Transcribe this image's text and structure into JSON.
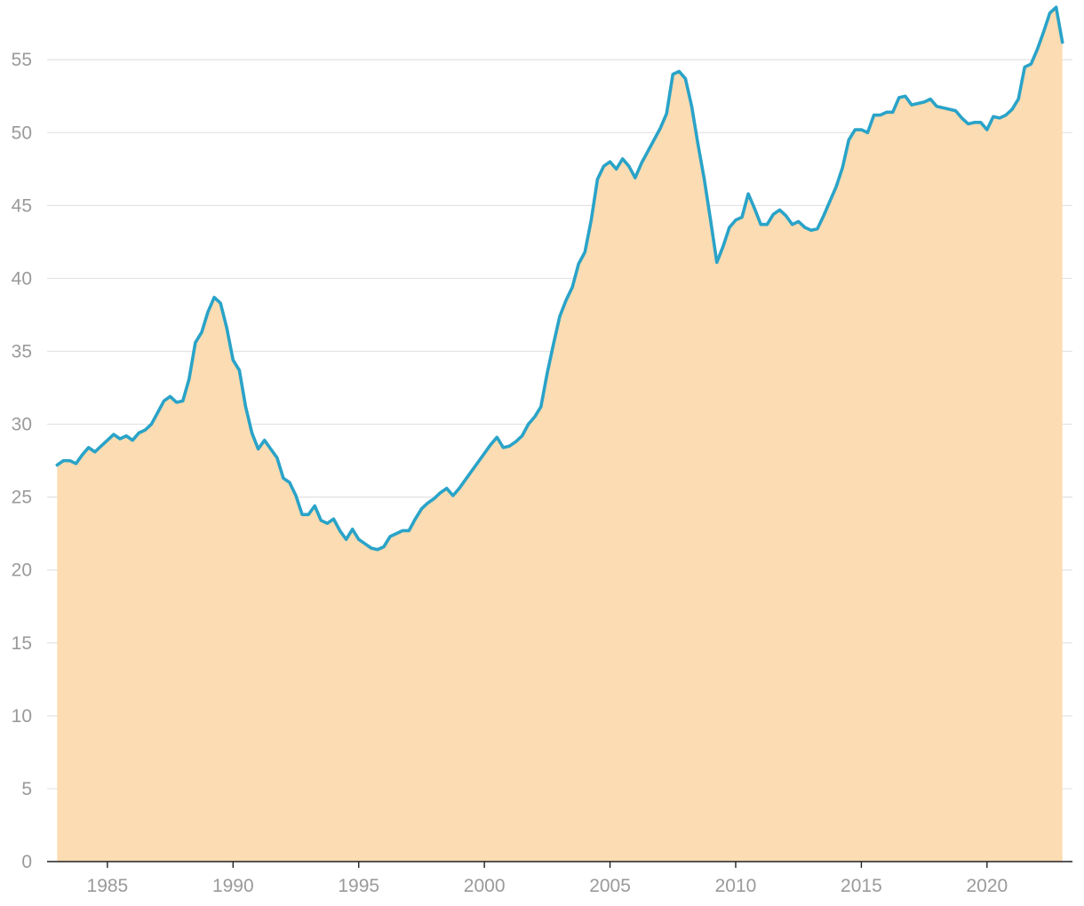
{
  "chart_data": {
    "type": "area",
    "title": "",
    "xlabel": "",
    "ylabel": "",
    "xlim": [
      1982.6,
      2023.4
    ],
    "ylim": [
      0,
      58
    ],
    "y_ticks": [
      0,
      5,
      10,
      15,
      20,
      25,
      30,
      35,
      40,
      45,
      50,
      55
    ],
    "x_ticks": [
      1985,
      1990,
      1995,
      2000,
      2005,
      2010,
      2015,
      2020
    ],
    "grid": true,
    "legend": "none",
    "colors": {
      "line": "#2aa3c8",
      "fill": "#fcdcb2",
      "grid": "#e3e3e3",
      "axis": "#222222",
      "tick_label": "#9a9a9a"
    },
    "series": [
      {
        "x": [
          1983.0,
          1983.25,
          1983.5,
          1983.75,
          1984.0,
          1984.25,
          1984.5,
          1984.75,
          1985.0,
          1985.25,
          1985.5,
          1985.75,
          1986.0,
          1986.25,
          1986.5,
          1986.75,
          1987.0,
          1987.25,
          1987.5,
          1987.75,
          1988.0,
          1988.25,
          1988.5,
          1988.75,
          1989.0,
          1989.25,
          1989.5,
          1989.75,
          1990.0,
          1990.25,
          1990.5,
          1990.75,
          1991.0,
          1991.25,
          1991.5,
          1991.75,
          1992.0,
          1992.25,
          1992.5,
          1992.75,
          1993.0,
          1993.25,
          1993.5,
          1993.75,
          1994.0,
          1994.25,
          1994.5,
          1994.75,
          1995.0,
          1995.25,
          1995.5,
          1995.75,
          1996.0,
          1996.25,
          1996.5,
          1996.75,
          1997.0,
          1997.25,
          1997.5,
          1997.75,
          1998.0,
          1998.25,
          1998.5,
          1998.75,
          1999.0,
          1999.25,
          1999.5,
          1999.75,
          2000.0,
          2000.25,
          2000.5,
          2000.75,
          2001.0,
          2001.25,
          2001.5,
          2001.75,
          2002.0,
          2002.25,
          2002.5,
          2002.75,
          2003.0,
          2003.25,
          2003.5,
          2003.75,
          2004.0,
          2004.25,
          2004.5,
          2004.75,
          2005.0,
          2005.25,
          2005.5,
          2005.75,
          2006.0,
          2006.25,
          2006.5,
          2006.75,
          2007.0,
          2007.25,
          2007.5,
          2007.75,
          2008.0,
          2008.25,
          2008.5,
          2008.75,
          2009.0,
          2009.25,
          2009.5,
          2009.75,
          2010.0,
          2010.25,
          2010.5,
          2010.75,
          2011.0,
          2011.25,
          2011.5,
          2011.75,
          2012.0,
          2012.25,
          2012.5,
          2012.75,
          2013.0,
          2013.25,
          2013.5,
          2013.75,
          2014.0,
          2014.25,
          2014.5,
          2014.75,
          2015.0,
          2015.25,
          2015.5,
          2015.75,
          2016.0,
          2016.25,
          2016.5,
          2016.75,
          2017.0,
          2017.25,
          2017.5,
          2017.75,
          2018.0,
          2018.25,
          2018.5,
          2018.75,
          2019.0,
          2019.25,
          2019.5,
          2019.75,
          2020.0,
          2020.25,
          2020.5,
          2020.75,
          2021.0,
          2021.25,
          2021.5,
          2021.75,
          2022.0,
          2022.25,
          2022.5,
          2022.75,
          2023.0
        ],
        "values": [
          27.2,
          27.5,
          27.5,
          27.3,
          27.9,
          28.4,
          28.1,
          28.5,
          28.9,
          29.3,
          29.0,
          29.2,
          28.9,
          29.4,
          29.6,
          30.0,
          30.8,
          31.6,
          31.9,
          31.5,
          31.6,
          33.1,
          35.6,
          36.3,
          37.7,
          38.7,
          38.3,
          36.6,
          34.4,
          33.7,
          31.2,
          29.4,
          28.3,
          28.9,
          28.3,
          27.7,
          26.3,
          26.0,
          25.1,
          23.8,
          23.8,
          24.4,
          23.4,
          23.2,
          23.5,
          22.7,
          22.1,
          22.8,
          22.1,
          21.8,
          21.5,
          21.4,
          21.6,
          22.3,
          22.5,
          22.7,
          22.7,
          23.5,
          24.2,
          24.6,
          24.9,
          25.3,
          25.6,
          25.1,
          25.6,
          26.2,
          26.8,
          27.4,
          28.0,
          28.6,
          29.1,
          28.4,
          28.5,
          28.8,
          29.2,
          30.0,
          30.5,
          31.2,
          33.5,
          35.5,
          37.4,
          38.5,
          39.4,
          41.0,
          41.8,
          44.0,
          46.8,
          47.7,
          48.0,
          47.5,
          48.2,
          47.7,
          46.9,
          47.9,
          48.7,
          49.5,
          50.3,
          51.3,
          54.0,
          54.2,
          53.7,
          51.8,
          49.2,
          46.8,
          44.0,
          41.1,
          42.2,
          43.5,
          44.0,
          44.2,
          45.8,
          44.8,
          43.7,
          43.7,
          44.4,
          44.7,
          44.3,
          43.7,
          43.9,
          43.5,
          43.3,
          43.4,
          44.3,
          45.3,
          46.3,
          47.6,
          49.5,
          50.2,
          50.2,
          50.0,
          51.2,
          51.2,
          51.4,
          51.4,
          52.4,
          52.5,
          51.9,
          52.0,
          52.1,
          52.3,
          51.8,
          51.7,
          51.6,
          51.5,
          51.0,
          50.6,
          50.7,
          50.7,
          50.2,
          51.1,
          51.0,
          51.2,
          51.6,
          52.3,
          54.5,
          54.7,
          55.7,
          56.9,
          58.2,
          58.6,
          56.2
        ]
      }
    ]
  }
}
